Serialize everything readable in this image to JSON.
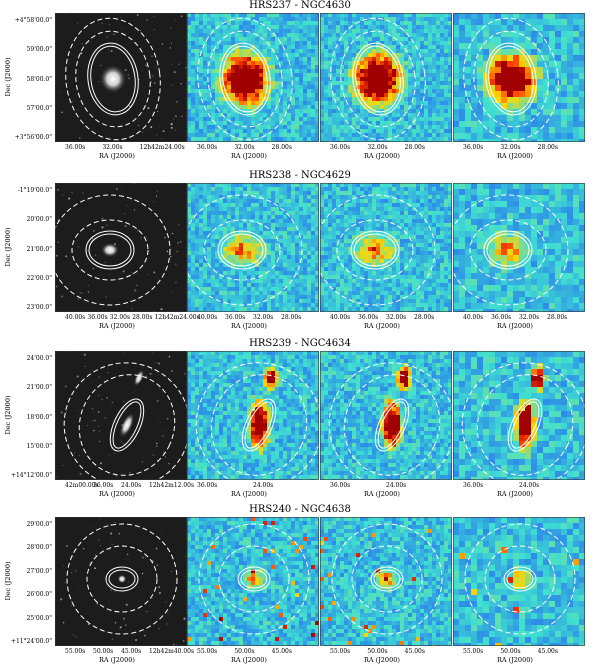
{
  "y_axis_label": "Dec (J2000)",
  "x_axis_label": "RA (J2000)",
  "rows": [
    {
      "title": "HRS237 - NGC4630",
      "y_ticks": [
        "+4°58'00.0\"",
        "59'00.0\"",
        "58'00.0\"",
        "57'00.0\"",
        "+3°56'00.0\""
      ],
      "x_ticks_panel1": [
        "36.00s",
        "32.00s",
        "12h42m24.00s"
      ],
      "x_ticks_other": [
        "36.00s",
        "32.00s",
        "28.00s"
      ]
    },
    {
      "title": "HRS238 - NGC4629",
      "y_ticks": [
        "-1°19'00.0\"",
        "20'00.0\"",
        "21'00.0\"",
        "22'00.0\"",
        "23'00.0\""
      ],
      "x_ticks_panel1": [
        "40.00s",
        "36.00s",
        "32.00s",
        "28.00s",
        "12h42m24.00s"
      ],
      "x_ticks_other": [
        "40.00s",
        "36.00s",
        "32.00s",
        "28.00s"
      ]
    },
    {
      "title": "HRS239 - NGC4634",
      "y_ticks": [
        "24'00.0\"",
        "21'00.0\"",
        "18'00.0\"",
        "15'00.0\"",
        "+14°12'00.0\""
      ],
      "x_ticks_panel1": [
        "42m00.00s",
        "36.00s",
        "24.00s",
        "12h42m12.00s"
      ],
      "x_ticks_other": [
        "36.00s",
        "24.00s"
      ]
    },
    {
      "title": "HRS240 - NGC4638",
      "y_ticks": [
        "29'00.0\"",
        "28'00.0\"",
        "27'00.0\"",
        "26'00.0\"",
        "25'00.0\"",
        "+11°24'00.0\""
      ],
      "x_ticks_panel1": [
        "55.00s",
        "50.00s",
        "45.00s",
        "12h42m40.00s"
      ],
      "x_ticks_other": [
        "55.00s",
        "50.00s",
        "45.00s"
      ]
    }
  ],
  "colors": {
    "cmap_low": "#1a3cff",
    "cmap_mid": "#40e0d0",
    "cmap_high": "#ffd700",
    "cmap_peak": "#a00000",
    "optical_bg": "#1c1c1c",
    "overlay": "#ffffff"
  }
}
